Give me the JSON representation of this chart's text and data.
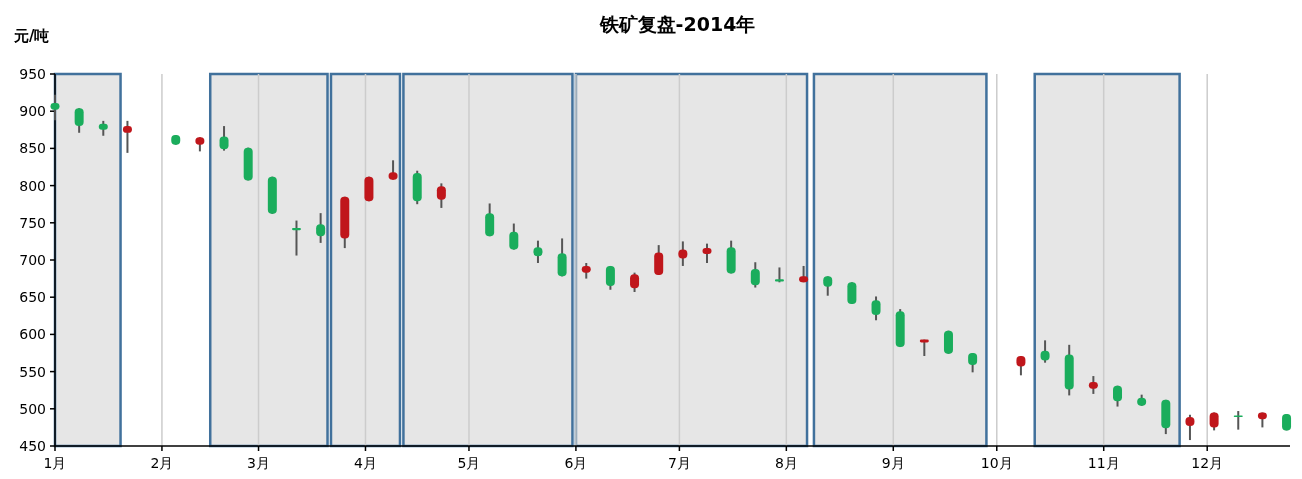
{
  "chart_data": {
    "type": "candlestick",
    "title": "铁矿复盘-2014年",
    "ylabel": "元/吨",
    "x": [
      "2014-01-01",
      "2014-01-08",
      "2014-01-15",
      "2014-01-22",
      "2014-02-05",
      "2014-02-12",
      "2014-02-19",
      "2014-02-26",
      "2014-03-05",
      "2014-03-12",
      "2014-03-19",
      "2014-03-26",
      "2014-04-02",
      "2014-04-09",
      "2014-04-16",
      "2014-04-23",
      "2014-05-07",
      "2014-05-14",
      "2014-05-21",
      "2014-05-28",
      "2014-06-04",
      "2014-06-11",
      "2014-06-18",
      "2014-06-25",
      "2014-07-02",
      "2014-07-09",
      "2014-07-16",
      "2014-07-23",
      "2014-07-30",
      "2014-08-06",
      "2014-08-13",
      "2014-08-20",
      "2014-08-27",
      "2014-09-03",
      "2014-09-10",
      "2014-09-17",
      "2014-09-24",
      "2014-10-08",
      "2014-10-15",
      "2014-10-22",
      "2014-10-29",
      "2014-11-05",
      "2014-11-12",
      "2014-11-19",
      "2014-11-26",
      "2014-12-03",
      "2014-12-10",
      "2014-12-17",
      "2014-12-24"
    ],
    "ohlc": [
      [
        911,
        922,
        888,
        902
      ],
      [
        904,
        904,
        871,
        880
      ],
      [
        883,
        887,
        867,
        875
      ],
      [
        871,
        887,
        844,
        880
      ],
      [
        868,
        868,
        855,
        855
      ],
      [
        855,
        865,
        846,
        865
      ],
      [
        866,
        880,
        847,
        849
      ],
      [
        851,
        851,
        807,
        807
      ],
      [
        812,
        812,
        762,
        762
      ],
      [
        743,
        753,
        706,
        740
      ],
      [
        748,
        763,
        723,
        732
      ],
      [
        729,
        785,
        716,
        785
      ],
      [
        779,
        812,
        779,
        812
      ],
      [
        808,
        834,
        808,
        818
      ],
      [
        817,
        820,
        775,
        779
      ],
      [
        781,
        803,
        770,
        799
      ],
      [
        763,
        776,
        732,
        732
      ],
      [
        738,
        749,
        714,
        714
      ],
      [
        717,
        726,
        696,
        705
      ],
      [
        709,
        729,
        678,
        678
      ],
      [
        683,
        696,
        675,
        692
      ],
      [
        692,
        692,
        660,
        665
      ],
      [
        662,
        683,
        657,
        681
      ],
      [
        680,
        720,
        680,
        710
      ],
      [
        702,
        725,
        692,
        714
      ],
      [
        708,
        722,
        696,
        716
      ],
      [
        717,
        726,
        682,
        682
      ],
      [
        688,
        697,
        663,
        666
      ],
      [
        674,
        690,
        670,
        671
      ],
      [
        670,
        692,
        670,
        678
      ],
      [
        678,
        678,
        652,
        664
      ],
      [
        670,
        670,
        641,
        641
      ],
      [
        646,
        651,
        619,
        626
      ],
      [
        631,
        634,
        583,
        583
      ],
      [
        589,
        593,
        571,
        593
      ],
      [
        605,
        605,
        574,
        574
      ],
      [
        575,
        575,
        549,
        559
      ],
      [
        557,
        571,
        545,
        571
      ],
      [
        578,
        592,
        562,
        565
      ],
      [
        573,
        586,
        518,
        526
      ],
      [
        527,
        544,
        520,
        536
      ],
      [
        531,
        531,
        503,
        510
      ],
      [
        515,
        519,
        504,
        504
      ],
      [
        512,
        512,
        466,
        474
      ],
      [
        477,
        492,
        458,
        489
      ],
      [
        475,
        495,
        471,
        495
      ],
      [
        491,
        497,
        472,
        489
      ],
      [
        486,
        495,
        475,
        495
      ],
      [
        493,
        493,
        471,
        471
      ]
    ],
    "colors": [
      "#1aad5c",
      "#1aad5c",
      "#1aad5c",
      "#c0161b",
      "#1aad5c",
      "#c0161b",
      "#1aad5c",
      "#1aad5c",
      "#1aad5c",
      "#1aad5c",
      "#1aad5c",
      "#c0161b",
      "#c0161b",
      "#c0161b",
      "#1aad5c",
      "#c0161b",
      "#1aad5c",
      "#1aad5c",
      "#1aad5c",
      "#1aad5c",
      "#c0161b",
      "#1aad5c",
      "#c0161b",
      "#c0161b",
      "#c0161b",
      "#c0161b",
      "#1aad5c",
      "#1aad5c",
      "#1aad5c",
      "#c0161b",
      "#1aad5c",
      "#1aad5c",
      "#1aad5c",
      "#1aad5c",
      "#c0161b",
      "#1aad5c",
      "#1aad5c",
      "#c0161b",
      "#1aad5c",
      "#1aad5c",
      "#c0161b",
      "#1aad5c",
      "#1aad5c",
      "#1aad5c",
      "#c0161b",
      "#c0161b",
      "#1aad5c",
      "#c0161b",
      "#1aad5c"
    ],
    "xlim": [
      "2014-01-01",
      "2014-12-25"
    ],
    "xticks": [
      {
        "value": "2014-01-01",
        "label": "1月"
      },
      {
        "value": "2014-02-01",
        "label": "2月"
      },
      {
        "value": "2014-03-01",
        "label": "3月"
      },
      {
        "value": "2014-04-01",
        "label": "4月"
      },
      {
        "value": "2014-05-01",
        "label": "5月"
      },
      {
        "value": "2014-06-01",
        "label": "6月"
      },
      {
        "value": "2014-07-01",
        "label": "7月"
      },
      {
        "value": "2014-08-01",
        "label": "8月"
      },
      {
        "value": "2014-09-01",
        "label": "9月"
      },
      {
        "value": "2014-10-01",
        "label": "10月"
      },
      {
        "value": "2014-11-01",
        "label": "11月"
      },
      {
        "value": "2014-12-01",
        "label": "12月"
      }
    ],
    "ylim": [
      450,
      950
    ],
    "yticks": [
      450,
      500,
      550,
      600,
      650,
      700,
      750,
      800,
      850,
      900,
      950
    ],
    "grid": "x",
    "bands": [
      {
        "axis": "x",
        "from": "2014-01-01",
        "to": "2014-01-20",
        "color": "#e6e6e6"
      },
      {
        "axis": "x",
        "from": "2014-02-15",
        "to": "2014-03-21",
        "color": "#e6e6e6"
      },
      {
        "axis": "x",
        "from": "2014-03-22",
        "to": "2014-04-11",
        "color": "#e6e6e6"
      },
      {
        "axis": "x",
        "from": "2014-04-12",
        "to": "2014-05-31",
        "color": "#e6e6e6"
      },
      {
        "axis": "x",
        "from": "2014-06-01",
        "to": "2014-08-07",
        "color": "#e6e6e6"
      },
      {
        "axis": "x",
        "from": "2014-08-09",
        "to": "2014-09-28",
        "color": "#e6e6e6"
      },
      {
        "axis": "x",
        "from": "2014-10-12",
        "to": "2014-11-23",
        "color": "#e6e6e6"
      }
    ]
  }
}
